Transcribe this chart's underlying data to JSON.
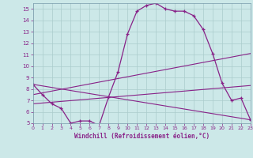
{
  "xlabel": "Windchill (Refroidissement éolien,°C)",
  "xlim": [
    0,
    23
  ],
  "ylim": [
    5,
    15.5
  ],
  "yticks": [
    5,
    6,
    7,
    8,
    9,
    10,
    11,
    12,
    13,
    14,
    15
  ],
  "xticks": [
    0,
    1,
    2,
    3,
    4,
    5,
    6,
    7,
    8,
    9,
    10,
    11,
    12,
    13,
    14,
    15,
    16,
    17,
    18,
    19,
    20,
    21,
    22,
    23
  ],
  "bg_color": "#cce8e8",
  "line_color": "#882288",
  "grid_color": "#aacccc",
  "line1_x": [
    0,
    1,
    2,
    3,
    4,
    5,
    6,
    7,
    8,
    9,
    10,
    11,
    12,
    13,
    14,
    15,
    16,
    17,
    18,
    19,
    20,
    21,
    22,
    23
  ],
  "line1_y": [
    8.4,
    7.5,
    6.7,
    6.3,
    5.0,
    5.2,
    5.2,
    4.8,
    7.3,
    9.5,
    12.8,
    14.8,
    15.3,
    15.5,
    15.0,
    14.8,
    14.8,
    14.4,
    13.2,
    11.1,
    8.5,
    7.0,
    7.2,
    5.3
  ],
  "line2_x": [
    0,
    23
  ],
  "line2_y": [
    8.4,
    5.3
  ],
  "line3_x": [
    0,
    23
  ],
  "line3_y": [
    7.5,
    11.1
  ],
  "line4_x": [
    0,
    23
  ],
  "line4_y": [
    6.7,
    8.3
  ]
}
